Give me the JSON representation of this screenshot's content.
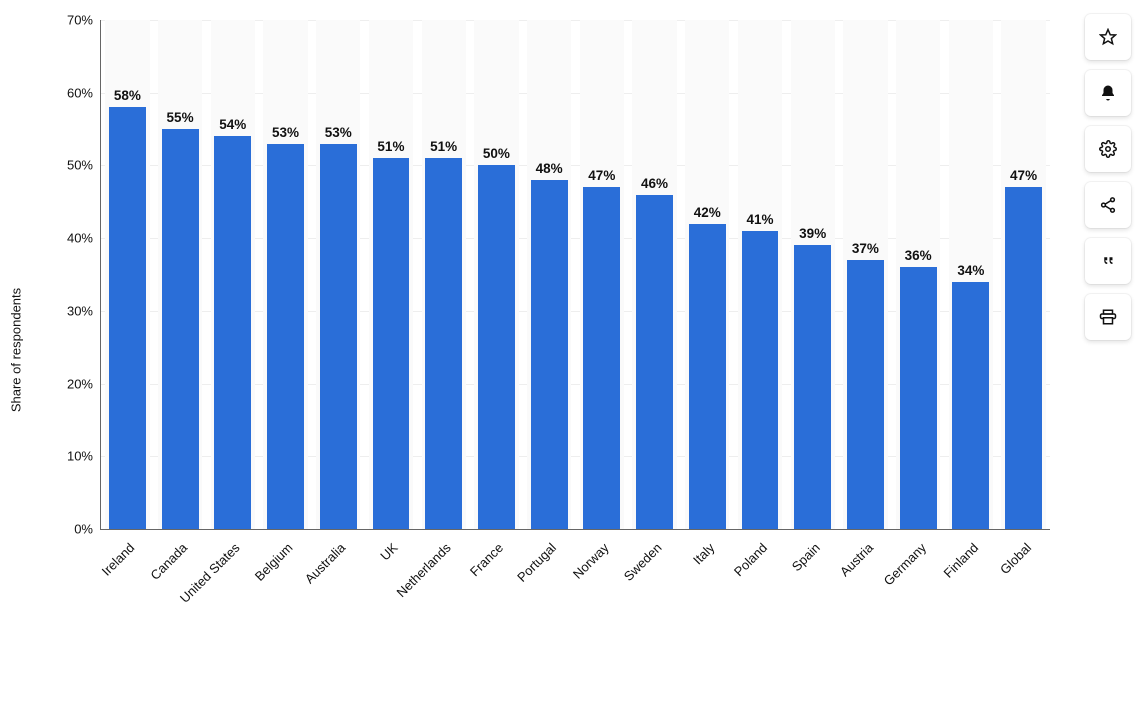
{
  "chart": {
    "type": "bar",
    "ylabel": "Share of respondents",
    "y_axis": {
      "min": 0,
      "max": 70,
      "step": 10,
      "suffix": "%",
      "label_fontsize": 13
    },
    "bar_color": "#2a6ed8",
    "alt_background": "#fafafa",
    "grid_color": "#eeeeee",
    "axis_color": "#666666",
    "background_color": "#ffffff",
    "bar_width": 0.7,
    "value_label_fontsize": 13.5,
    "value_label_fontweight": 700,
    "x_label_fontsize": 13,
    "x_label_rotation_deg": -45,
    "categories": [
      "Ireland",
      "Canada",
      "United States",
      "Belgium",
      "Australia",
      "UK",
      "Netherlands",
      "France",
      "Portugal",
      "Norway",
      "Sweden",
      "Italy",
      "Poland",
      "Spain",
      "Austria",
      "Germany",
      "Finland",
      "Global"
    ],
    "values": [
      58,
      55,
      54,
      53,
      53,
      51,
      51,
      50,
      48,
      47,
      46,
      42,
      41,
      39,
      37,
      36,
      34,
      47
    ]
  },
  "sidebar": {
    "buttons": [
      {
        "name": "favorite",
        "aria": "Favorite"
      },
      {
        "name": "notify",
        "aria": "Notifications"
      },
      {
        "name": "settings",
        "aria": "Settings"
      },
      {
        "name": "share",
        "aria": "Share"
      },
      {
        "name": "cite",
        "aria": "Cite"
      },
      {
        "name": "print",
        "aria": "Print"
      }
    ]
  }
}
